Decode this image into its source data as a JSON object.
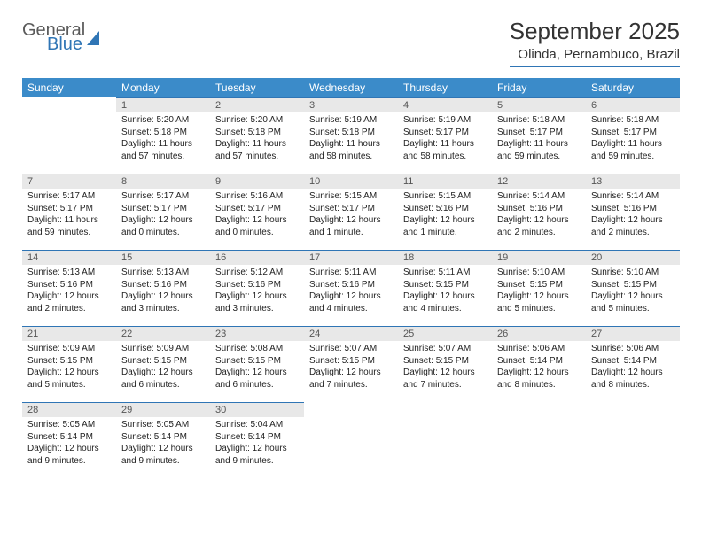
{
  "brand": {
    "word1": "General",
    "word2": "Blue"
  },
  "title": "September 2025",
  "location": "Olinda, Pernambuco, Brazil",
  "colors": {
    "accent": "#2f75b5",
    "header_bg": "#3b8bc9",
    "daynum_bg": "#e8e8e8",
    "text": "#222222",
    "muted": "#555555",
    "page_bg": "#ffffff"
  },
  "fonts": {
    "title_size_pt": 26,
    "location_size_pt": 15,
    "weekday_size_pt": 12,
    "body_size_pt": 10
  },
  "weekdays": [
    "Sunday",
    "Monday",
    "Tuesday",
    "Wednesday",
    "Thursday",
    "Friday",
    "Saturday"
  ],
  "grid": {
    "columns": 7,
    "rows": 5,
    "first_weekday_index": 1,
    "days_in_month": 30
  },
  "days": {
    "1": {
      "sunrise": "5:20 AM",
      "sunset": "5:18 PM",
      "daylight": "11 hours and 57 minutes."
    },
    "2": {
      "sunrise": "5:20 AM",
      "sunset": "5:18 PM",
      "daylight": "11 hours and 57 minutes."
    },
    "3": {
      "sunrise": "5:19 AM",
      "sunset": "5:18 PM",
      "daylight": "11 hours and 58 minutes."
    },
    "4": {
      "sunrise": "5:19 AM",
      "sunset": "5:17 PM",
      "daylight": "11 hours and 58 minutes."
    },
    "5": {
      "sunrise": "5:18 AM",
      "sunset": "5:17 PM",
      "daylight": "11 hours and 59 minutes."
    },
    "6": {
      "sunrise": "5:18 AM",
      "sunset": "5:17 PM",
      "daylight": "11 hours and 59 minutes."
    },
    "7": {
      "sunrise": "5:17 AM",
      "sunset": "5:17 PM",
      "daylight": "11 hours and 59 minutes."
    },
    "8": {
      "sunrise": "5:17 AM",
      "sunset": "5:17 PM",
      "daylight": "12 hours and 0 minutes."
    },
    "9": {
      "sunrise": "5:16 AM",
      "sunset": "5:17 PM",
      "daylight": "12 hours and 0 minutes."
    },
    "10": {
      "sunrise": "5:15 AM",
      "sunset": "5:17 PM",
      "daylight": "12 hours and 1 minute."
    },
    "11": {
      "sunrise": "5:15 AM",
      "sunset": "5:16 PM",
      "daylight": "12 hours and 1 minute."
    },
    "12": {
      "sunrise": "5:14 AM",
      "sunset": "5:16 PM",
      "daylight": "12 hours and 2 minutes."
    },
    "13": {
      "sunrise": "5:14 AM",
      "sunset": "5:16 PM",
      "daylight": "12 hours and 2 minutes."
    },
    "14": {
      "sunrise": "5:13 AM",
      "sunset": "5:16 PM",
      "daylight": "12 hours and 2 minutes."
    },
    "15": {
      "sunrise": "5:13 AM",
      "sunset": "5:16 PM",
      "daylight": "12 hours and 3 minutes."
    },
    "16": {
      "sunrise": "5:12 AM",
      "sunset": "5:16 PM",
      "daylight": "12 hours and 3 minutes."
    },
    "17": {
      "sunrise": "5:11 AM",
      "sunset": "5:16 PM",
      "daylight": "12 hours and 4 minutes."
    },
    "18": {
      "sunrise": "5:11 AM",
      "sunset": "5:15 PM",
      "daylight": "12 hours and 4 minutes."
    },
    "19": {
      "sunrise": "5:10 AM",
      "sunset": "5:15 PM",
      "daylight": "12 hours and 5 minutes."
    },
    "20": {
      "sunrise": "5:10 AM",
      "sunset": "5:15 PM",
      "daylight": "12 hours and 5 minutes."
    },
    "21": {
      "sunrise": "5:09 AM",
      "sunset": "5:15 PM",
      "daylight": "12 hours and 5 minutes."
    },
    "22": {
      "sunrise": "5:09 AM",
      "sunset": "5:15 PM",
      "daylight": "12 hours and 6 minutes."
    },
    "23": {
      "sunrise": "5:08 AM",
      "sunset": "5:15 PM",
      "daylight": "12 hours and 6 minutes."
    },
    "24": {
      "sunrise": "5:07 AM",
      "sunset": "5:15 PM",
      "daylight": "12 hours and 7 minutes."
    },
    "25": {
      "sunrise": "5:07 AM",
      "sunset": "5:15 PM",
      "daylight": "12 hours and 7 minutes."
    },
    "26": {
      "sunrise": "5:06 AM",
      "sunset": "5:14 PM",
      "daylight": "12 hours and 8 minutes."
    },
    "27": {
      "sunrise": "5:06 AM",
      "sunset": "5:14 PM",
      "daylight": "12 hours and 8 minutes."
    },
    "28": {
      "sunrise": "5:05 AM",
      "sunset": "5:14 PM",
      "daylight": "12 hours and 9 minutes."
    },
    "29": {
      "sunrise": "5:05 AM",
      "sunset": "5:14 PM",
      "daylight": "12 hours and 9 minutes."
    },
    "30": {
      "sunrise": "5:04 AM",
      "sunset": "5:14 PM",
      "daylight": "12 hours and 9 minutes."
    }
  },
  "labels": {
    "sunrise_prefix": "Sunrise: ",
    "sunset_prefix": "Sunset: ",
    "daylight_prefix": "Daylight: "
  }
}
